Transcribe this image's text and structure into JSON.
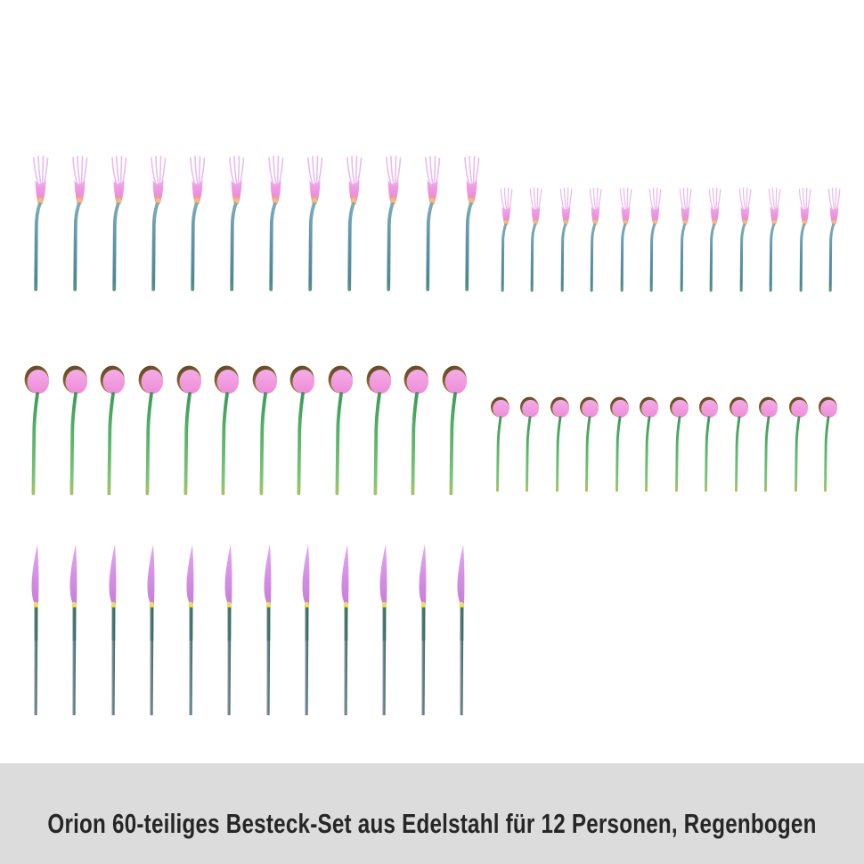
{
  "caption": {
    "text": "Orion 60-teiliges Besteck-Set aus Edelstahl für 12 Personen, Regenbogen"
  },
  "product": {
    "name": "rainbow-cutlery-set",
    "total_pieces": 60,
    "rows": [
      {
        "id": "forks",
        "groups": [
          {
            "id": "dinner-forks",
            "type": "fork",
            "size": "large",
            "count": 12
          },
          {
            "id": "dessert-forks",
            "type": "fork",
            "size": "small",
            "count": 12
          }
        ]
      },
      {
        "id": "spoons",
        "groups": [
          {
            "id": "dinner-spoons",
            "type": "spoon",
            "size": "large",
            "count": 12
          },
          {
            "id": "teaspoons",
            "type": "spoon",
            "size": "small",
            "count": 12
          }
        ]
      },
      {
        "id": "knives",
        "groups": [
          {
            "id": "dinner-knives",
            "type": "knife",
            "size": "large",
            "count": 12
          }
        ]
      }
    ]
  },
  "colors": {
    "background": "#ffffff",
    "caption_bar": "#dcdcdc",
    "caption_text": "#262626",
    "fork_head_pink": "#ec93df",
    "fork_tine_pink": "#e9bcec",
    "fork_junction_orange": "#f6bd7c",
    "fork_handle_teal": "#5f98ac",
    "spoon_bowl_pink": "#f19ade",
    "spoon_rim_brown": "#6b5426",
    "spoon_handle_green": "#50b264",
    "knife_blade_violet": "#d38fe6",
    "knife_junction_yellow": "#ece05a",
    "knife_handle_teal": "#2f6b5d",
    "knife_handle_lavender": "#b09bd8"
  }
}
